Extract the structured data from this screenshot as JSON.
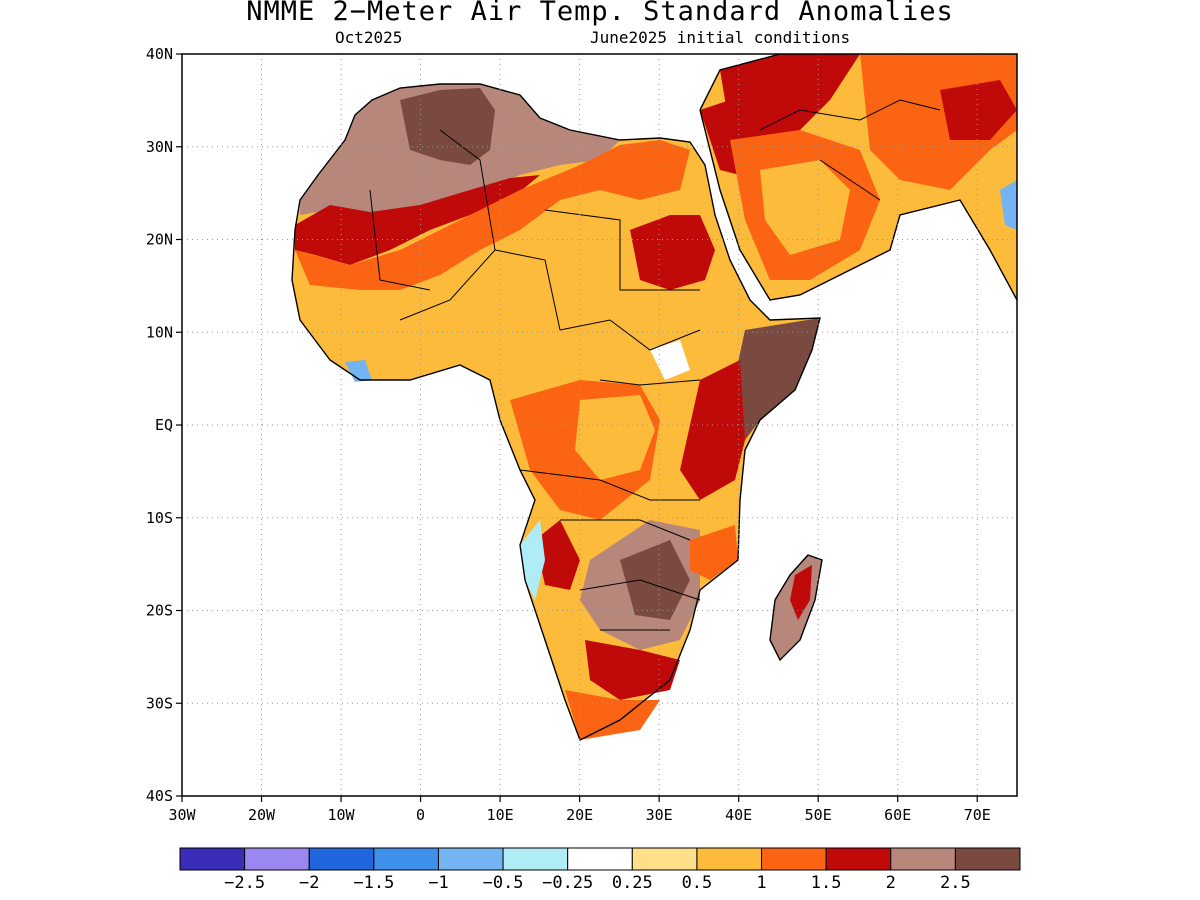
{
  "title": "NMME 2−Meter Air Temp. Standard Anomalies",
  "subtitle_left": "Oct2025",
  "subtitle_right": "June2025 initial conditions",
  "lat_ticks": [
    {
      "label": "40N",
      "lat": 40
    },
    {
      "label": "30N",
      "lat": 30
    },
    {
      "label": "20N",
      "lat": 20
    },
    {
      "label": "10N",
      "lat": 10
    },
    {
      "label": "EQ",
      "lat": 0
    },
    {
      "label": "10S",
      "lat": -10
    },
    {
      "label": "20S",
      "lat": -20
    },
    {
      "label": "30S",
      "lat": -30
    },
    {
      "label": "40S",
      "lat": -40
    }
  ],
  "lon_ticks": [
    {
      "label": "30W",
      "lon": -30
    },
    {
      "label": "20W",
      "lon": -20
    },
    {
      "label": "10W",
      "lon": -10
    },
    {
      "label": "0",
      "lon": 0
    },
    {
      "label": "10E",
      "lon": 10
    },
    {
      "label": "20E",
      "lon": 20
    },
    {
      "label": "30E",
      "lon": 30
    },
    {
      "label": "40E",
      "lon": 40
    },
    {
      "label": "50E",
      "lon": 50
    },
    {
      "label": "60E",
      "lon": 60
    },
    {
      "label": "70E",
      "lon": 70
    }
  ],
  "map_extent": {
    "lon_min": -30,
    "lon_max": 75,
    "lat_min": -40,
    "lat_max": 40
  },
  "colorbar": {
    "colors": [
      "#3a2db8",
      "#9a88f0",
      "#2266dd",
      "#3f90ea",
      "#74b4f3",
      "#b0ecf6",
      "#ffffff",
      "#fee08b",
      "#fdbb3c",
      "#fb6412",
      "#c00a0a",
      "#b8877c",
      "#7a4a40"
    ],
    "labels": [
      "−2.5",
      "−2",
      "−1.5",
      "−1",
      "−0.5",
      "−0.25",
      "0.25",
      "0.5",
      "1",
      "1.5",
      "2",
      "2.5"
    ]
  },
  "regions": [
    {
      "name": "sahara-west-brown",
      "level": 11
    },
    {
      "name": "sahara-libya-darkbrown",
      "level": 12
    },
    {
      "name": "sahel-red-band",
      "level": 10
    },
    {
      "name": "sahara-orange-band",
      "level": 9
    },
    {
      "name": "sahel-lightorange",
      "level": 8
    },
    {
      "name": "sudan-egypt-red",
      "level": 10
    },
    {
      "name": "middle-east-red",
      "level": 10
    },
    {
      "name": "arabia-lightorange",
      "level": 8
    },
    {
      "name": "horn-of-africa-darkbrown",
      "level": 12
    },
    {
      "name": "congo-lightorange",
      "level": 8
    },
    {
      "name": "southern-africa-brown",
      "level": 11
    },
    {
      "name": "namibia-red-coast",
      "level": 10
    },
    {
      "name": "south-africa-lightorange",
      "level": 8
    },
    {
      "name": "madagascar-brown",
      "level": 11
    },
    {
      "name": "angola-coast-blue",
      "level": 5
    },
    {
      "name": "gulf-guinea-blue",
      "level": 3
    }
  ]
}
